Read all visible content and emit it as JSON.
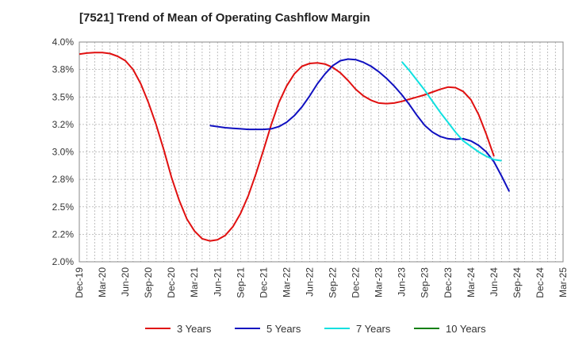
{
  "chart_data": {
    "type": "line",
    "title": "[7521]  Trend of Mean of Operating Cashflow Margin",
    "xlabel": "",
    "ylabel": "",
    "x_ticks": [
      "Dec-19",
      "Mar-20",
      "Jun-20",
      "Sep-20",
      "Dec-20",
      "Mar-21",
      "Jun-21",
      "Sep-21",
      "Dec-21",
      "Mar-22",
      "Jun-22",
      "Sep-22",
      "Dec-22",
      "Mar-23",
      "Jun-23",
      "Sep-23",
      "Dec-23",
      "Mar-24",
      "Jun-24",
      "Sep-24",
      "Dec-24",
      "Mar-25"
    ],
    "y_ticks": [
      "2.0%",
      "2.2%",
      "2.5%",
      "2.8%",
      "3.0%",
      "3.2%",
      "3.5%",
      "3.8%",
      "4.0%"
    ],
    "ylim": [
      2.0,
      4.0
    ],
    "grid": true,
    "legend_placement": "bottom",
    "series": [
      {
        "name": "3 Years",
        "color": "#e01010",
        "values": [
          3.89,
          3.9,
          3.905,
          3.905,
          3.895,
          3.87,
          3.83,
          3.75,
          3.62,
          3.45,
          3.25,
          3.02,
          2.77,
          2.56,
          2.39,
          2.28,
          2.21,
          2.19,
          2.2,
          2.24,
          2.32,
          2.44,
          2.6,
          2.8,
          3.02,
          3.25,
          3.45,
          3.6,
          3.71,
          3.78,
          3.805,
          3.81,
          3.8,
          3.77,
          3.72,
          3.65,
          3.57,
          3.51,
          3.47,
          3.445,
          3.44,
          3.445,
          3.46,
          3.48,
          3.5,
          3.52,
          3.545,
          3.57,
          3.59,
          3.585,
          3.55,
          3.475,
          3.34,
          3.16,
          2.96
        ]
      },
      {
        "name": "5 Years",
        "color": "#1010c0",
        "values": [
          null,
          null,
          null,
          null,
          null,
          null,
          null,
          null,
          null,
          null,
          null,
          null,
          null,
          null,
          null,
          null,
          null,
          3.24,
          3.23,
          3.22,
          3.215,
          3.21,
          3.205,
          3.205,
          3.205,
          3.21,
          3.23,
          3.27,
          3.33,
          3.41,
          3.51,
          3.62,
          3.71,
          3.785,
          3.83,
          3.845,
          3.84,
          3.815,
          3.78,
          3.73,
          3.67,
          3.6,
          3.52,
          3.43,
          3.33,
          3.24,
          3.18,
          3.14,
          3.12,
          3.115,
          3.12,
          3.1,
          3.06,
          3.0,
          2.91,
          2.78,
          2.64
        ]
      },
      {
        "name": "7 Years",
        "color": "#10e0e0",
        "values": [
          null,
          null,
          null,
          null,
          null,
          null,
          null,
          null,
          null,
          null,
          null,
          null,
          null,
          null,
          null,
          null,
          null,
          null,
          null,
          null,
          null,
          null,
          null,
          null,
          null,
          null,
          null,
          null,
          null,
          null,
          null,
          null,
          null,
          null,
          null,
          null,
          null,
          null,
          null,
          null,
          null,
          null,
          3.82,
          3.74,
          3.65,
          3.56,
          3.46,
          3.36,
          3.27,
          3.18,
          3.1,
          3.05,
          3.0,
          2.96,
          2.93,
          2.92
        ]
      },
      {
        "name": "10 Years",
        "color": "#108010",
        "values": []
      }
    ]
  }
}
